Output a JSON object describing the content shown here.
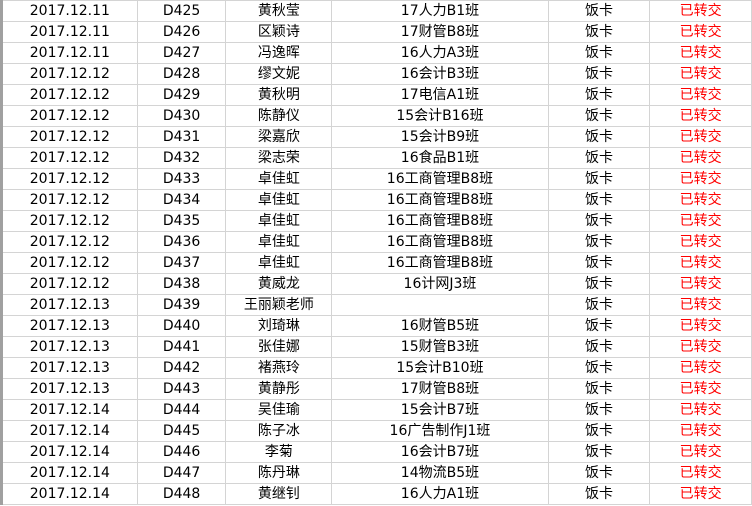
{
  "colors": {
    "status": "#ff0000",
    "grid": "#d4d4d4"
  },
  "rows": [
    {
      "date": "2017.12.11",
      "id": "D425",
      "name": "黄秋莹",
      "class": "17人力B1班",
      "card": "饭卡",
      "status": "已转交"
    },
    {
      "date": "2017.12.11",
      "id": "D426",
      "name": "区颖诗",
      "class": "17财管B8班",
      "card": "饭卡",
      "status": "已转交"
    },
    {
      "date": "2017.12.11",
      "id": "D427",
      "name": "冯逸晖",
      "class": "16人力A3班",
      "card": "饭卡",
      "status": "已转交"
    },
    {
      "date": "2017.12.12",
      "id": "D428",
      "name": "缪文妮",
      "class": "16会计B3班",
      "card": "饭卡",
      "status": "已转交"
    },
    {
      "date": "2017.12.12",
      "id": "D429",
      "name": "黄秋明",
      "class": "17电信A1班",
      "card": "饭卡",
      "status": "已转交"
    },
    {
      "date": "2017.12.12",
      "id": "D430",
      "name": "陈静仪",
      "class": "15会计B16班",
      "card": "饭卡",
      "status": "已转交"
    },
    {
      "date": "2017.12.12",
      "id": "D431",
      "name": "梁嘉欣",
      "class": "15会计B9班",
      "card": "饭卡",
      "status": "已转交"
    },
    {
      "date": "2017.12.12",
      "id": "D432",
      "name": "梁志荣",
      "class": "16食品B1班",
      "card": "饭卡",
      "status": "已转交"
    },
    {
      "date": "2017.12.12",
      "id": "D433",
      "name": "卓佳虹",
      "class": "16工商管理B8班",
      "card": "饭卡",
      "status": "已转交"
    },
    {
      "date": "2017.12.12",
      "id": "D434",
      "name": "卓佳虹",
      "class": "16工商管理B8班",
      "card": "饭卡",
      "status": "已转交"
    },
    {
      "date": "2017.12.12",
      "id": "D435",
      "name": "卓佳虹",
      "class": "16工商管理B8班",
      "card": "饭卡",
      "status": "已转交"
    },
    {
      "date": "2017.12.12",
      "id": "D436",
      "name": "卓佳虹",
      "class": "16工商管理B8班",
      "card": "饭卡",
      "status": "已转交"
    },
    {
      "date": "2017.12.12",
      "id": "D437",
      "name": "卓佳虹",
      "class": "16工商管理B8班",
      "card": "饭卡",
      "status": "已转交"
    },
    {
      "date": "2017.12.12",
      "id": "D438",
      "name": "黄威龙",
      "class": "16计网J3班",
      "card": "饭卡",
      "status": "已转交"
    },
    {
      "date": "2017.12.13",
      "id": "D439",
      "name": "王丽颖老师",
      "class": "",
      "card": "饭卡",
      "status": "已转交"
    },
    {
      "date": "2017.12.13",
      "id": "D440",
      "name": "刘琦琳",
      "class": "16财管B5班",
      "card": "饭卡",
      "status": "已转交"
    },
    {
      "date": "2017.12.13",
      "id": "D441",
      "name": "张佳娜",
      "class": "15财管B3班",
      "card": "饭卡",
      "status": "已转交"
    },
    {
      "date": "2017.12.13",
      "id": "D442",
      "name": "褚燕玲",
      "class": "15会计B10班",
      "card": "饭卡",
      "status": "已转交"
    },
    {
      "date": "2017.12.13",
      "id": "D443",
      "name": "黄静彤",
      "class": "17财管B8班",
      "card": "饭卡",
      "status": "已转交"
    },
    {
      "date": "2017.12.14",
      "id": "D444",
      "name": "吴佳瑜",
      "class": "15会计B7班",
      "card": "饭卡",
      "status": "已转交"
    },
    {
      "date": "2017.12.14",
      "id": "D445",
      "name": "陈子冰",
      "class": "16广告制作J1班",
      "card": "饭卡",
      "status": "已转交"
    },
    {
      "date": "2017.12.14",
      "id": "D446",
      "name": "李菊",
      "class": "16会计B7班",
      "card": "饭卡",
      "status": "已转交"
    },
    {
      "date": "2017.12.14",
      "id": "D447",
      "name": "陈丹琳",
      "class": "14物流B5班",
      "card": "饭卡",
      "status": "已转交"
    },
    {
      "date": "2017.12.14",
      "id": "D448",
      "name": "黄继钊",
      "class": "16人力A1班",
      "card": "饭卡",
      "status": "已转交"
    }
  ]
}
